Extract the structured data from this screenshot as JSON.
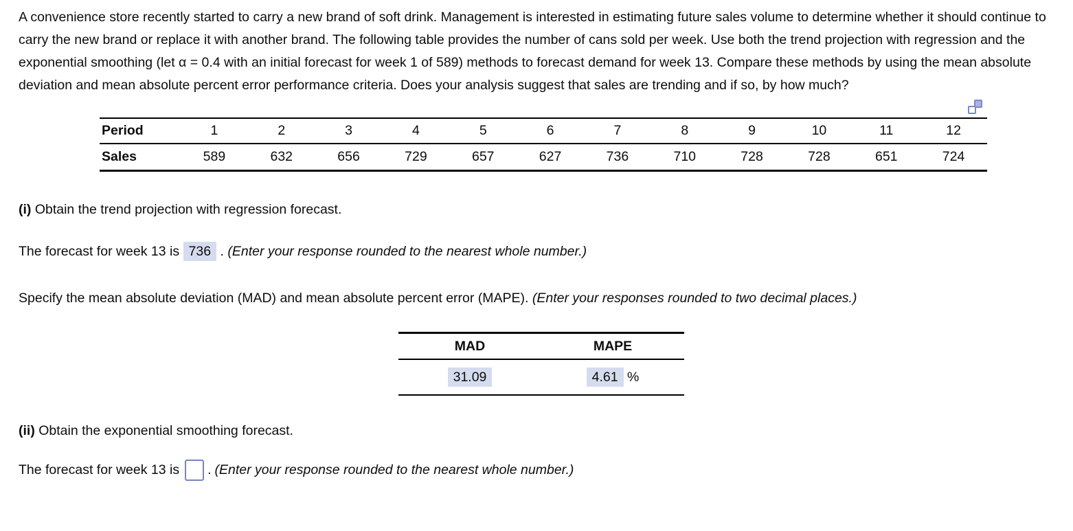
{
  "problem": {
    "statement": "A convenience store recently started to carry a new brand of soft drink. Management is interested in estimating future sales volume to determine whether it should continue to carry the new brand or replace it with another brand. The following table provides the number of cans sold per week. Use both the trend projection with regression and the exponential smoothing (let α = 0.4 with an initial forecast for week 1 of 589) methods to forecast demand for week 13. Compare these methods by using the mean absolute deviation and mean absolute percent error performance criteria. Does your analysis suggest that sales are trending and if so, by how much?"
  },
  "icons": {
    "duplicate": "duplicate-question-icon"
  },
  "data_table": {
    "row1_label": "Period",
    "row2_label": "Sales",
    "periods": [
      "1",
      "2",
      "3",
      "4",
      "5",
      "6",
      "7",
      "8",
      "9",
      "10",
      "11",
      "12"
    ],
    "sales": [
      "589",
      "632",
      "656",
      "729",
      "657",
      "627",
      "736",
      "710",
      "728",
      "728",
      "651",
      "724"
    ]
  },
  "part_i": {
    "label": "(i)",
    "title": "Obtain the trend projection with regression forecast.",
    "forecast_prefix": "The forecast for week 13 is",
    "forecast_value": "736",
    "forecast_period": ".",
    "forecast_note": "(Enter your response rounded to the nearest whole number.)",
    "specify_text": "Specify the mean absolute deviation (MAD) and mean absolute percent error (MAPE).",
    "specify_note": "(Enter your responses rounded to two decimal places.)",
    "results": {
      "header_mad": "MAD",
      "header_mape": "MAPE",
      "mad_value": "31.09",
      "mape_value": "4.61",
      "mape_unit": "%"
    }
  },
  "part_ii": {
    "label": "(ii)",
    "title": "Obtain the exponential smoothing forecast.",
    "forecast_prefix": "The forecast for week 13 is",
    "forecast_value": "",
    "forecast_period": ".",
    "forecast_note": "(Enter your response rounded to the nearest whole number.)"
  },
  "colors": {
    "answer_highlight": "#d5dcee",
    "input_border": "#7584c6",
    "icon_blue": "#7b88cc"
  }
}
